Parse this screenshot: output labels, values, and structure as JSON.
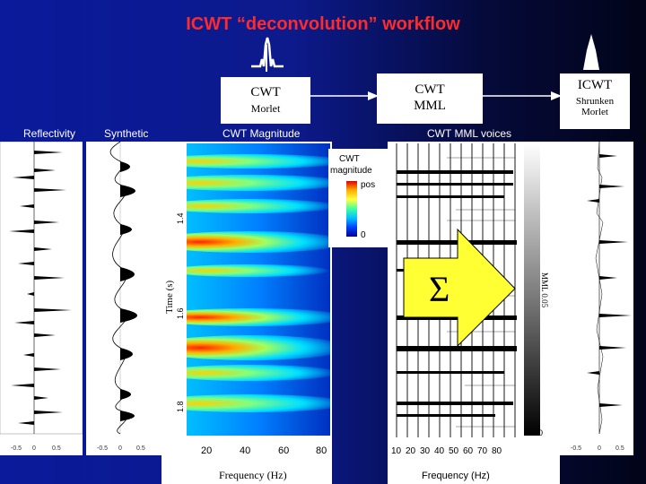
{
  "title": "ICWT “deconvolution” workflow",
  "boxes": {
    "cwt": {
      "line1": "CWT",
      "line2": "Morlet"
    },
    "cwt_mml": {
      "line1": "CWT",
      "line2": "MML"
    },
    "icwt": {
      "line1": "ICWT",
      "line2": "Shrunken",
      "line3": "Morlet"
    }
  },
  "panel_labels": {
    "reflectivity": "Reflectivity",
    "synthetic": "Synthetic",
    "cwt_magnitude": "CWT Magnitude",
    "cwt_mml_voices": "CWT MML voices"
  },
  "colorbar": {
    "title_line1": "CWT",
    "title_line2": "magnitude",
    "top_label": "pos",
    "bottom_label": "0"
  },
  "sigma": "Σ",
  "axes": {
    "time_label": "Time (s)",
    "time_ticks": [
      "1.4",
      "1.6",
      "1.8"
    ],
    "freq_label_left": "Frequency (Hz)",
    "freq_ticks_left": [
      "20",
      "40",
      "60",
      "80"
    ],
    "freq_label_right": "Frequency (Hz)",
    "freq_ticks_right": [
      "10",
      "20",
      "30",
      "40",
      "50",
      "60",
      "70",
      "80"
    ],
    "trace_ticks": [
      "-0.5",
      "0",
      "0.5"
    ],
    "gray_bar_label": "0",
    "mml_label": "MML 0.05"
  },
  "colors": {
    "title": "#ff2a2a",
    "arrow": "#ffff33",
    "background": "#0a1a9a"
  }
}
